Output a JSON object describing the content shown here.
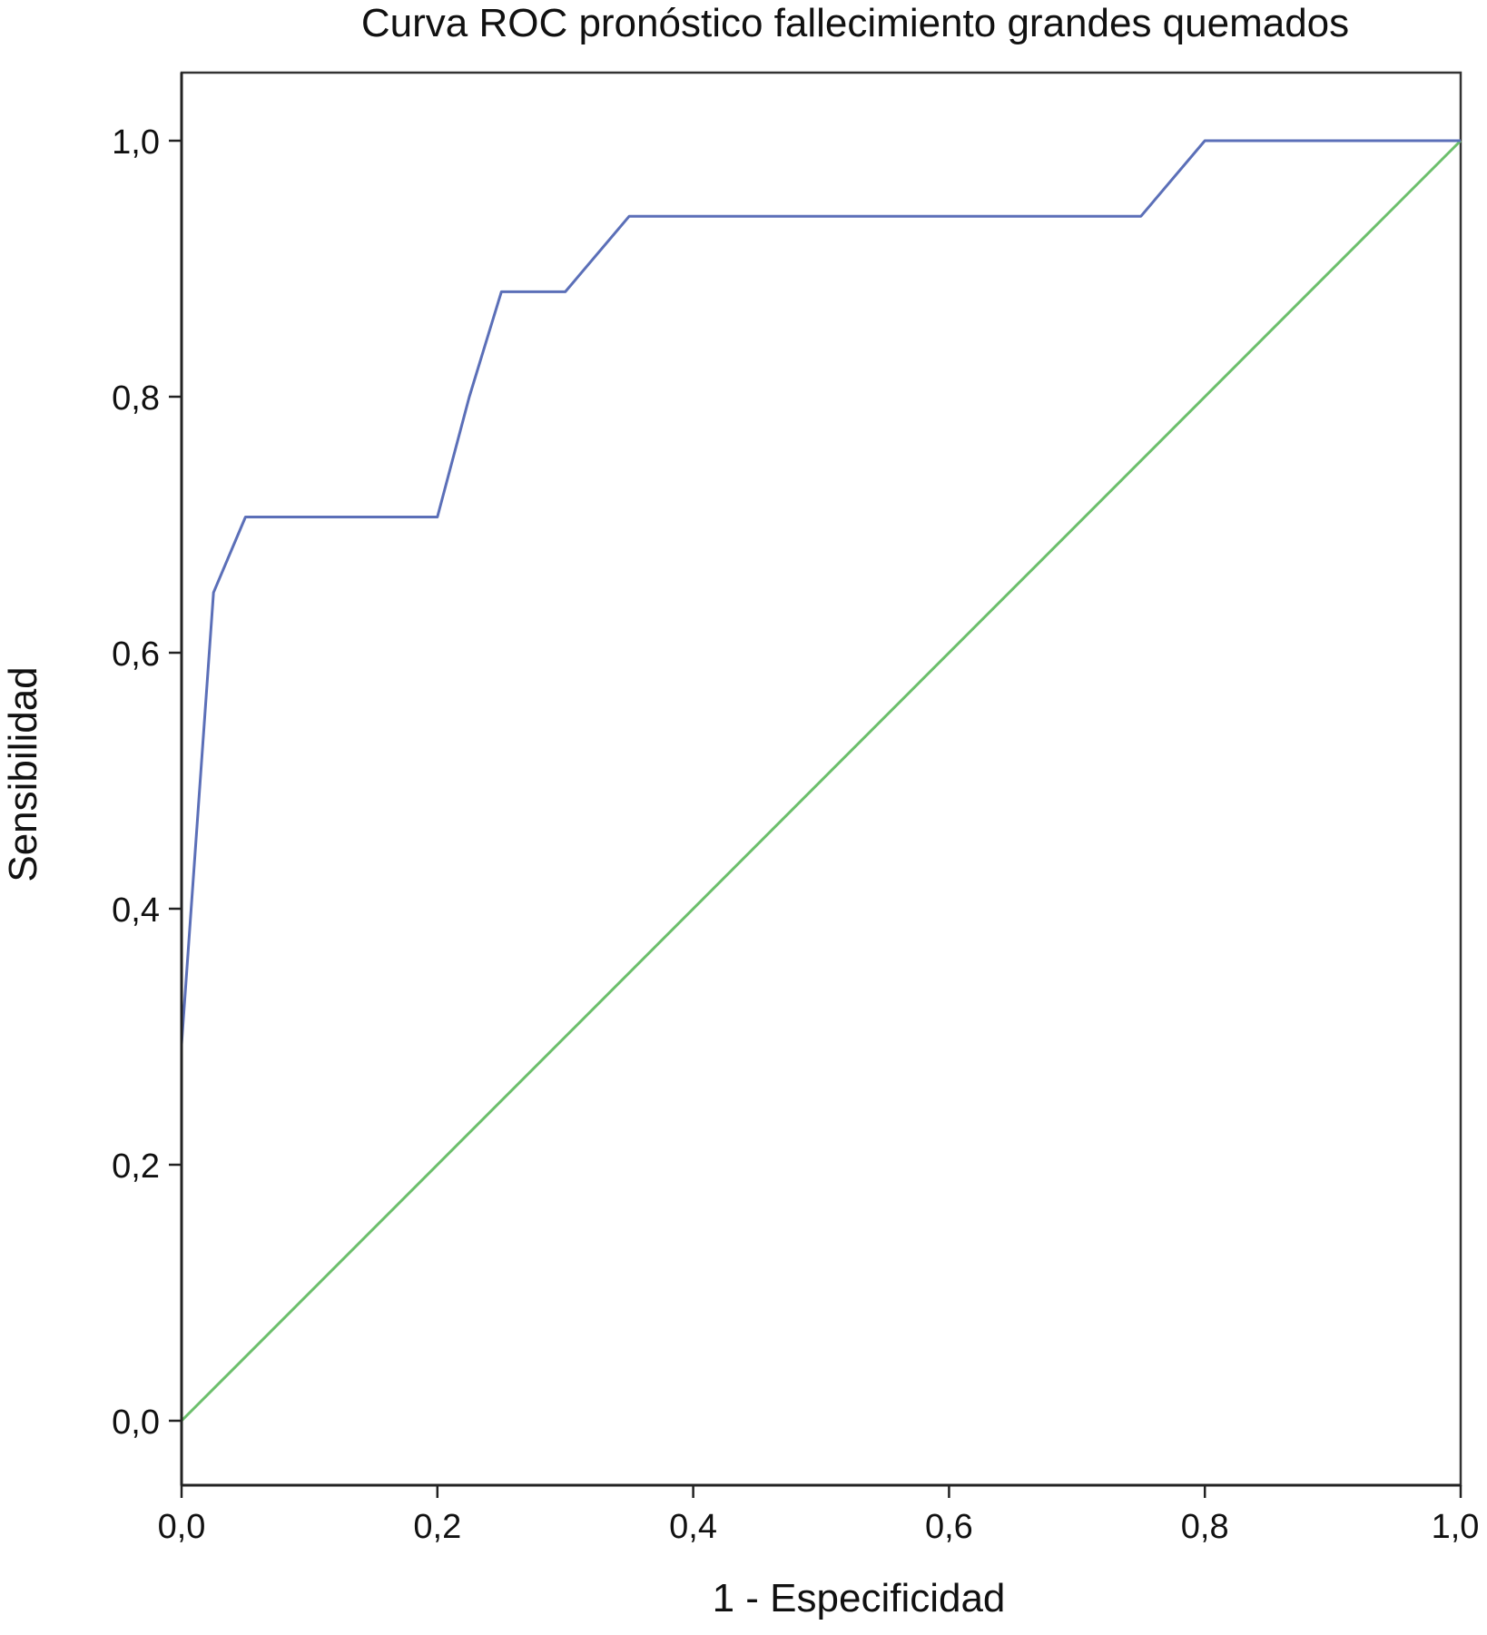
{
  "chart_data": {
    "type": "line",
    "title": "Curva ROC pronóstico fallecimiento grandes quemados",
    "xlabel": "1 - Especificidad",
    "ylabel": "Sensibilidad",
    "xlim": [
      0,
      1
    ],
    "ylim": [
      -0.05,
      1.055
    ],
    "x_ticks": [
      {
        "value": 0.0,
        "label": "0,0"
      },
      {
        "value": 0.2,
        "label": "0,2"
      },
      {
        "value": 0.4,
        "label": "0,4"
      },
      {
        "value": 0.6,
        "label": "0,6"
      },
      {
        "value": 0.8,
        "label": "0,8"
      },
      {
        "value": 1.0,
        "label": "1,0"
      }
    ],
    "y_ticks": [
      {
        "value": 0.0,
        "label": "0,0"
      },
      {
        "value": 0.2,
        "label": "0,2"
      },
      {
        "value": 0.4,
        "label": "0,4"
      },
      {
        "value": 0.6,
        "label": "0,6"
      },
      {
        "value": 0.8,
        "label": "0,8"
      },
      {
        "value": 1.0,
        "label": "1,0"
      }
    ],
    "grid": false,
    "legend": "none",
    "series": [
      {
        "color": "#5b6fb8",
        "x": [
          0.0,
          0.025,
          0.05,
          0.1,
          0.15,
          0.2,
          0.225,
          0.25,
          0.3,
          0.35,
          0.5,
          0.65,
          0.75,
          0.8,
          1.0
        ],
        "y": [
          0.294,
          0.647,
          0.706,
          0.706,
          0.706,
          0.706,
          0.8,
          0.882,
          0.882,
          0.941,
          0.941,
          0.941,
          0.941,
          1.0,
          1.0
        ]
      },
      {
        "color": "#6cbf6c",
        "x": [
          0.0,
          1.0
        ],
        "y": [
          0.0,
          1.0
        ]
      }
    ]
  }
}
